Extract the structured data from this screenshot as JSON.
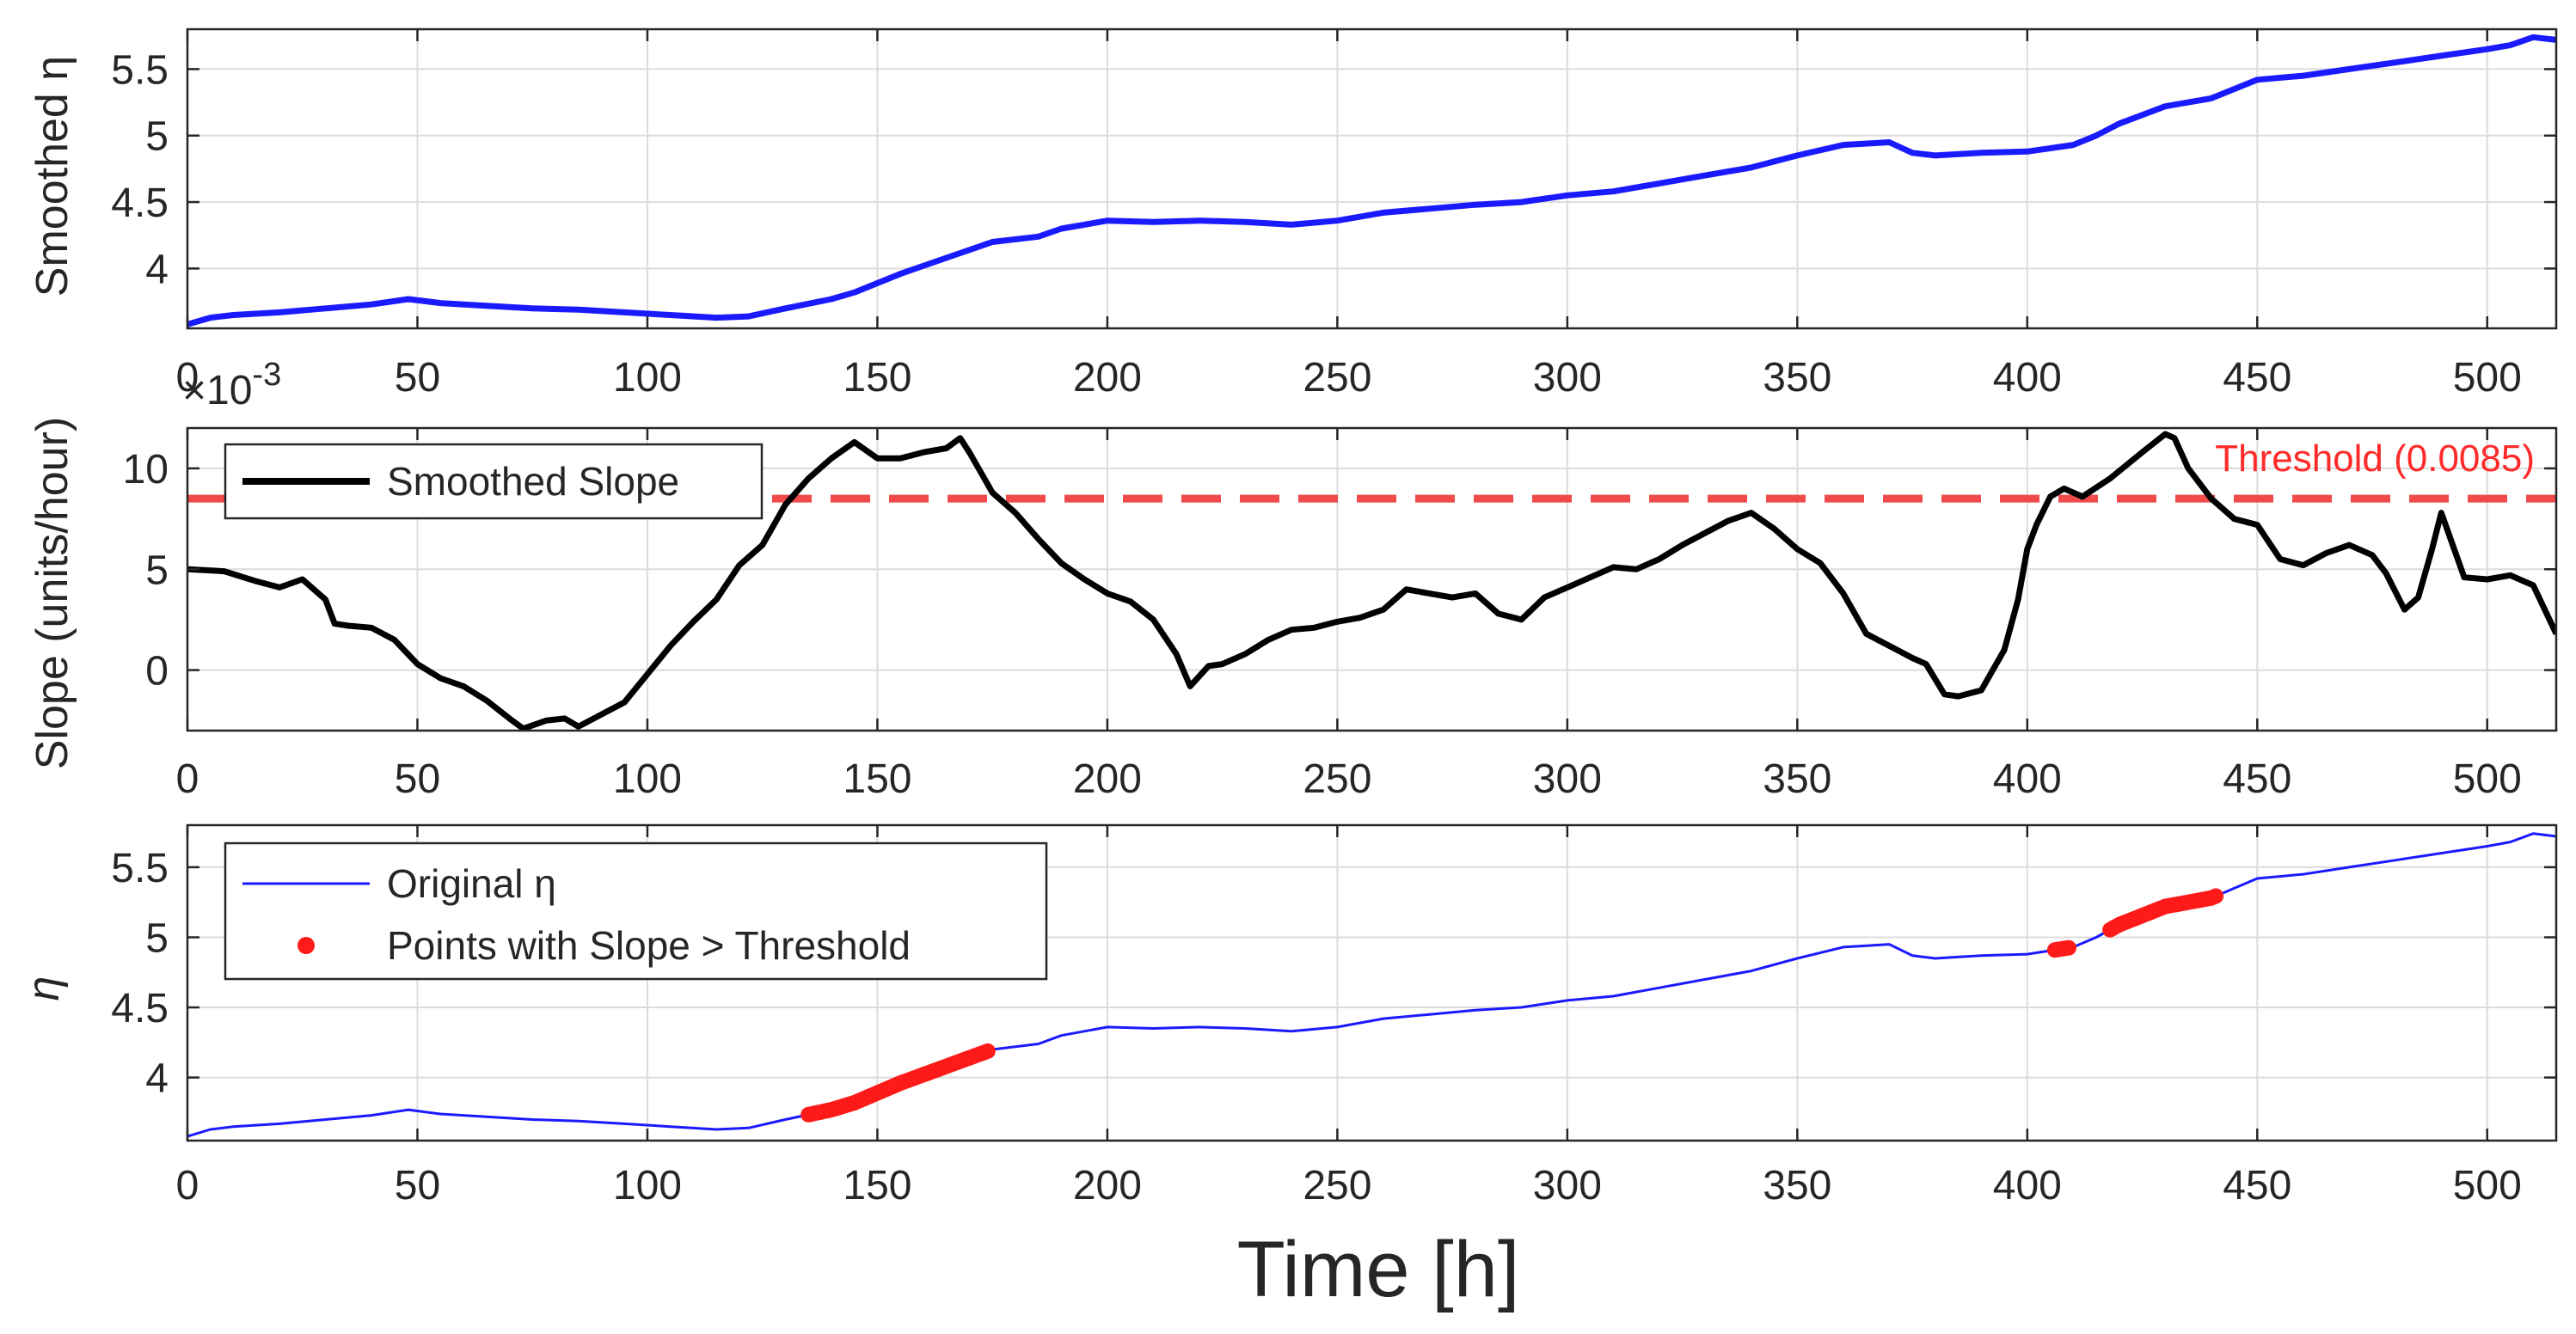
{
  "chart_data": [
    {
      "id": "smoothed",
      "type": "line",
      "ylabel": "Smoothed η",
      "xlim": [
        0,
        515
      ],
      "ylim": [
        3.55,
        5.8
      ],
      "xticks": [
        0,
        50,
        100,
        150,
        200,
        250,
        300,
        350,
        400,
        450,
        500
      ],
      "xtick_labels": [
        "0",
        "50",
        "100",
        "150",
        "200",
        "250",
        "300",
        "350",
        "400",
        "450",
        "500"
      ],
      "yticks": [
        4,
        4.5,
        5,
        5.5
      ],
      "ytick_labels": [
        "4",
        "4.5",
        "5",
        "5.5"
      ],
      "grid": true,
      "series": [
        {
          "name": "Smoothed η",
          "color": "#1a1aff",
          "x": [
            0,
            5,
            10,
            20,
            30,
            40,
            48,
            55,
            65,
            75,
            85,
            95,
            105,
            115,
            122,
            130,
            140,
            145,
            155,
            165,
            175,
            185,
            190,
            200,
            210,
            220,
            230,
            240,
            250,
            260,
            270,
            280,
            290,
            300,
            310,
            320,
            330,
            340,
            350,
            360,
            370,
            375,
            380,
            390,
            400,
            410,
            415,
            420,
            430,
            440,
            450,
            460,
            470,
            480,
            490,
            500,
            505,
            510,
            515
          ],
          "y": [
            3.58,
            3.63,
            3.65,
            3.67,
            3.7,
            3.73,
            3.77,
            3.74,
            3.72,
            3.7,
            3.69,
            3.67,
            3.65,
            3.63,
            3.64,
            3.7,
            3.77,
            3.82,
            3.96,
            4.08,
            4.2,
            4.24,
            4.3,
            4.36,
            4.35,
            4.36,
            4.35,
            4.33,
            4.36,
            4.42,
            4.45,
            4.48,
            4.5,
            4.55,
            4.58,
            4.64,
            4.7,
            4.76,
            4.85,
            4.93,
            4.95,
            4.87,
            4.85,
            4.87,
            4.88,
            4.93,
            5.0,
            5.09,
            5.22,
            5.28,
            5.42,
            5.45,
            5.5,
            5.55,
            5.6,
            5.65,
            5.68,
            5.74,
            5.72
          ]
        }
      ]
    },
    {
      "id": "slope",
      "type": "line",
      "ylabel": "Slope (units/hour)",
      "exponent_label": "×10",
      "exponent_power": "-3",
      "xlim": [
        0,
        515
      ],
      "ylim": [
        -3,
        12
      ],
      "xticks": [
        0,
        50,
        100,
        150,
        200,
        250,
        300,
        350,
        400,
        450,
        500
      ],
      "xtick_labels": [
        "0",
        "50",
        "100",
        "150",
        "200",
        "250",
        "300",
        "350",
        "400",
        "450",
        "500"
      ],
      "yticks": [
        0,
        5,
        10
      ],
      "ytick_labels": [
        "0",
        "5",
        "10"
      ],
      "grid": true,
      "legend": [
        "Smoothed Slope"
      ],
      "legend_position": "top-left",
      "threshold": {
        "value": 8.5,
        "label": "Threshold (0.0085)",
        "color": "#f04a4a"
      },
      "series": [
        {
          "name": "Smoothed Slope",
          "color": "#000000",
          "x": [
            0,
            8,
            15,
            20,
            25,
            30,
            32,
            35,
            40,
            45,
            50,
            55,
            60,
            65,
            70,
            73,
            78,
            82,
            85,
            90,
            95,
            100,
            105,
            110,
            115,
            120,
            125,
            130,
            135,
            140,
            145,
            150,
            155,
            160,
            165,
            168,
            170,
            175,
            180,
            185,
            190,
            195,
            200,
            205,
            210,
            215,
            218,
            222,
            225,
            230,
            235,
            240,
            245,
            250,
            255,
            260,
            265,
            270,
            275,
            280,
            285,
            290,
            295,
            300,
            305,
            310,
            315,
            320,
            325,
            330,
            335,
            340,
            345,
            350,
            355,
            360,
            365,
            370,
            375,
            378,
            382,
            385,
            390,
            395,
            398,
            400,
            402,
            405,
            408,
            412,
            418,
            425,
            430,
            432,
            435,
            440,
            445,
            450,
            455,
            460,
            465,
            470,
            475,
            478,
            482,
            485,
            488,
            490,
            495,
            500,
            505,
            510,
            515
          ],
          "y": [
            5.0,
            4.9,
            4.4,
            4.1,
            4.5,
            3.5,
            2.3,
            2.2,
            2.1,
            1.5,
            0.3,
            -0.4,
            -0.8,
            -1.5,
            -2.4,
            -2.9,
            -2.5,
            -2.4,
            -2.8,
            -2.2,
            -1.6,
            -0.2,
            1.2,
            2.4,
            3.5,
            5.2,
            6.2,
            8.2,
            9.5,
            10.5,
            11.3,
            10.5,
            10.5,
            10.8,
            11.0,
            11.5,
            10.8,
            8.8,
            7.8,
            6.5,
            5.3,
            4.5,
            3.8,
            3.4,
            2.5,
            0.8,
            -0.8,
            0.2,
            0.3,
            0.8,
            1.5,
            2.0,
            2.1,
            2.4,
            2.6,
            3.0,
            4.0,
            3.8,
            3.6,
            3.8,
            2.8,
            2.5,
            3.6,
            4.1,
            4.6,
            5.1,
            5.0,
            5.5,
            6.2,
            6.8,
            7.4,
            7.8,
            7.0,
            6.0,
            5.3,
            3.8,
            1.8,
            1.2,
            0.6,
            0.3,
            -1.2,
            -1.3,
            -1.0,
            1.0,
            3.5,
            6.0,
            7.2,
            8.6,
            9.0,
            8.6,
            9.5,
            10.8,
            11.7,
            11.5,
            10.0,
            8.5,
            7.5,
            7.2,
            5.5,
            5.2,
            5.8,
            6.2,
            5.7,
            4.8,
            3.0,
            3.6,
            6.0,
            7.8,
            4.6,
            4.5,
            4.7,
            4.2,
            1.8
          ]
        }
      ]
    },
    {
      "id": "eta",
      "type": "line",
      "ylabel": "η",
      "xlabel": "Time [h]",
      "xlim": [
        0,
        515
      ],
      "ylim": [
        3.55,
        5.8
      ],
      "xticks": [
        0,
        50,
        100,
        150,
        200,
        250,
        300,
        350,
        400,
        450,
        500
      ],
      "xtick_labels": [
        "0",
        "50",
        "100",
        "150",
        "200",
        "250",
        "300",
        "350",
        "400",
        "450",
        "500"
      ],
      "yticks": [
        4,
        4.5,
        5,
        5.5
      ],
      "ytick_labels": [
        "4",
        "4.5",
        "5",
        "5.5"
      ],
      "grid": true,
      "legend": [
        "Original η",
        "Points with Slope > Threshold"
      ],
      "legend_position": "top-left",
      "series": [
        {
          "name": "Original η",
          "color": "#1a1aff",
          "ref": "smoothed"
        }
      ],
      "highlight_points": {
        "name": "Points with Slope > Threshold",
        "color": "#ff1a1a",
        "ranges": [
          [
            135,
            174
          ],
          [
            406,
            409
          ],
          [
            418,
            441
          ]
        ]
      }
    }
  ]
}
